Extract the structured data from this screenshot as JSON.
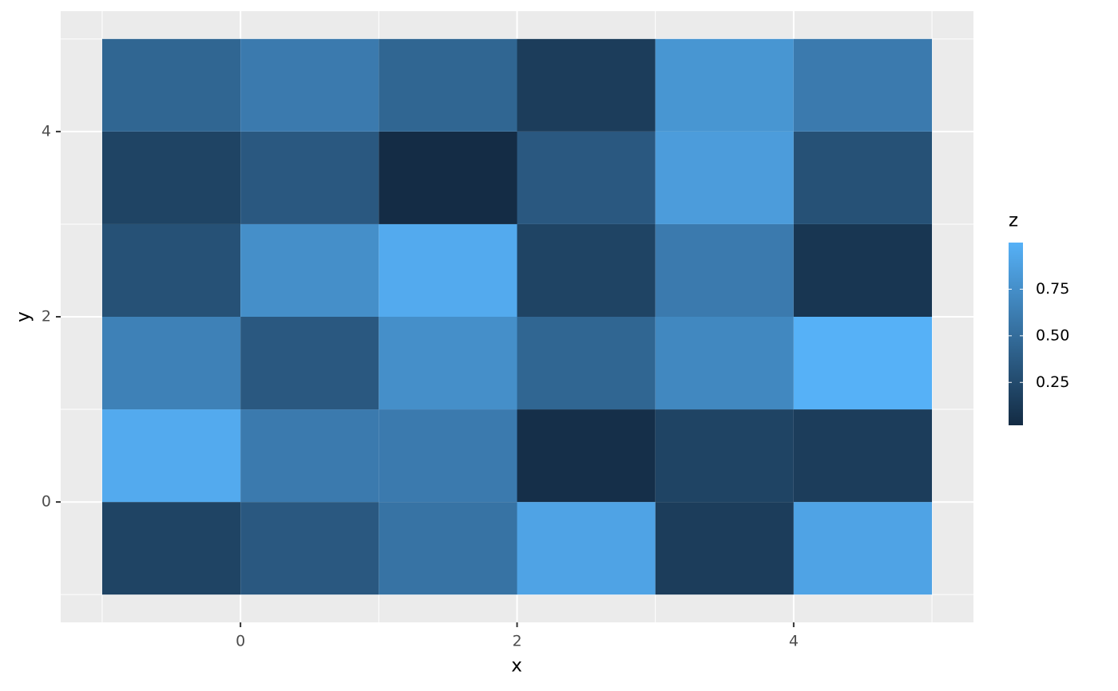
{
  "chart_data": {
    "type": "heatmap",
    "x_label": "x",
    "y_label": "y",
    "x": [
      -0.5,
      0.5,
      1.5,
      2.5,
      3.5,
      4.5
    ],
    "y": [
      -0.5,
      0.5,
      1.5,
      2.5,
      3.5,
      4.5
    ],
    "values": [
      [
        0.2,
        0.35,
        0.55,
        0.9,
        0.15,
        0.9
      ],
      [
        0.95,
        0.6,
        0.6,
        0.05,
        0.2,
        0.15
      ],
      [
        0.65,
        0.35,
        0.75,
        0.45,
        0.7,
        1.0
      ],
      [
        0.3,
        0.75,
        0.95,
        0.2,
        0.6,
        0.1
      ],
      [
        0.2,
        0.35,
        0.03,
        0.35,
        0.85,
        0.3
      ],
      [
        0.45,
        0.6,
        0.45,
        0.15,
        0.8,
        0.6
      ]
    ],
    "xlim": [
      -1.3,
      5.3
    ],
    "ylim": [
      -1.3,
      5.3
    ],
    "xticks": [
      0,
      2,
      4
    ],
    "yticks": [
      0,
      2,
      4
    ],
    "xminor": [
      -1,
      1,
      3,
      5
    ],
    "yminor": [
      -1,
      1,
      3,
      5
    ],
    "grid": true,
    "colorscale": {
      "title": "z",
      "low": "#132B43",
      "high": "#56B1F7",
      "limits": [
        0.02,
        1.0
      ],
      "ticks": [
        0.25,
        {
          "value": 0.5,
          "label": "0.50"
        },
        0.75
      ]
    }
  }
}
